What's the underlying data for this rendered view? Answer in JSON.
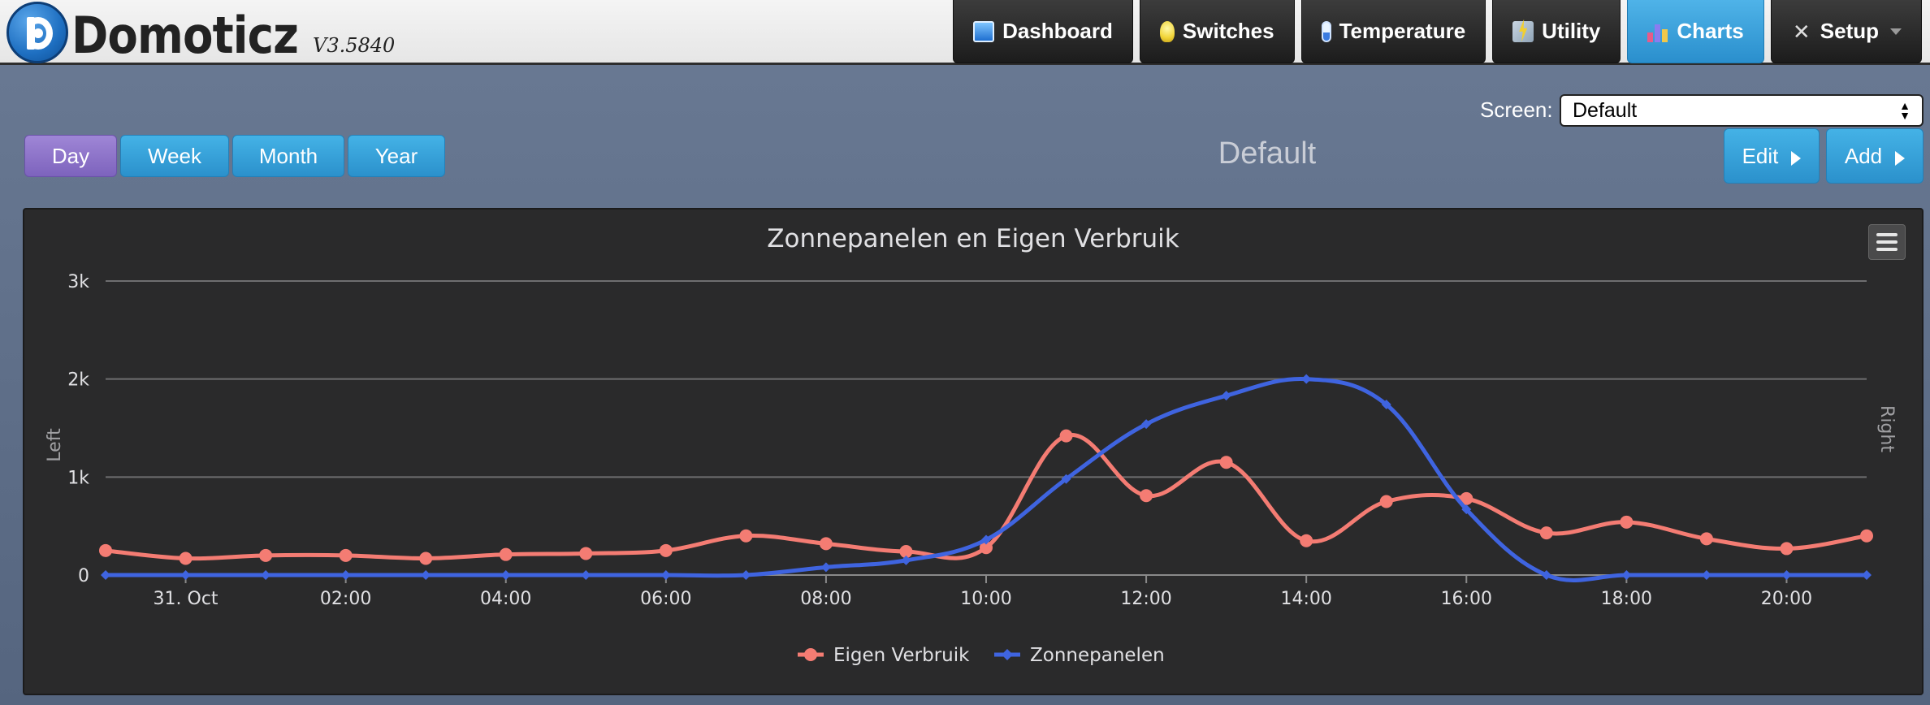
{
  "app": {
    "name": "Domoticz",
    "version": "V3.5840"
  },
  "nav": {
    "items": [
      {
        "label": "Dashboard",
        "icon": "dashboard-icon"
      },
      {
        "label": "Switches",
        "icon": "lightbulb-icon"
      },
      {
        "label": "Temperature",
        "icon": "thermometer-icon"
      },
      {
        "label": "Utility",
        "icon": "utility-icon"
      },
      {
        "label": "Charts",
        "icon": "bar-chart-icon",
        "active": true
      },
      {
        "label": "Setup",
        "icon": "tools-icon",
        "has_dropdown": true
      }
    ]
  },
  "screen": {
    "label": "Screen:",
    "selected": "Default"
  },
  "range_buttons": [
    {
      "label": "Day",
      "active": true
    },
    {
      "label": "Week"
    },
    {
      "label": "Month"
    },
    {
      "label": "Year"
    }
  ],
  "page_title": "Default",
  "actions": {
    "edit": "Edit",
    "add": "Add"
  },
  "colors": {
    "accent": "#2b91cc",
    "active_range": "#7d63bd",
    "series_eigen": "#f47c73",
    "series_zonne": "#3f64e0",
    "panel_bg": "#2a2a2b"
  },
  "chart_data": {
    "type": "line",
    "title": "Zonnepanelen en Eigen Verbruik",
    "ylabel_left": "Left",
    "ylabel_right": "Right",
    "ylim": [
      0,
      3000
    ],
    "y_ticks": [
      "0",
      "1k",
      "2k",
      "3k"
    ],
    "y_tick_values": [
      0,
      1000,
      2000,
      3000
    ],
    "x_ticks": [
      "31. Oct",
      "02:00",
      "04:00",
      "06:00",
      "08:00",
      "10:00",
      "12:00",
      "14:00",
      "16:00",
      "18:00",
      "20:00"
    ],
    "x_tick_hours": [
      0,
      2,
      4,
      6,
      8,
      10,
      12,
      14,
      16,
      18,
      20
    ],
    "x_hours": [
      -1,
      0,
      1,
      2,
      3,
      4,
      5,
      6,
      7,
      8,
      9,
      10,
      11,
      12,
      13,
      14,
      15,
      16,
      17,
      18,
      19,
      20,
      21
    ],
    "legend_position": "bottom-center",
    "grid": true,
    "series": [
      {
        "name": "Eigen Verbruik",
        "color": "#f47c73",
        "marker": "circle",
        "values": [
          250,
          170,
          200,
          200,
          170,
          210,
          220,
          250,
          400,
          320,
          240,
          280,
          1420,
          810,
          1150,
          350,
          750,
          780,
          430,
          540,
          370,
          270,
          400
        ]
      },
      {
        "name": "Zonnepanelen",
        "color": "#3f64e0",
        "marker": "diamond",
        "values": [
          0,
          0,
          0,
          0,
          0,
          0,
          0,
          0,
          0,
          80,
          150,
          360,
          980,
          1540,
          1830,
          2000,
          1740,
          670,
          0,
          0,
          0,
          0,
          0
        ]
      }
    ]
  }
}
